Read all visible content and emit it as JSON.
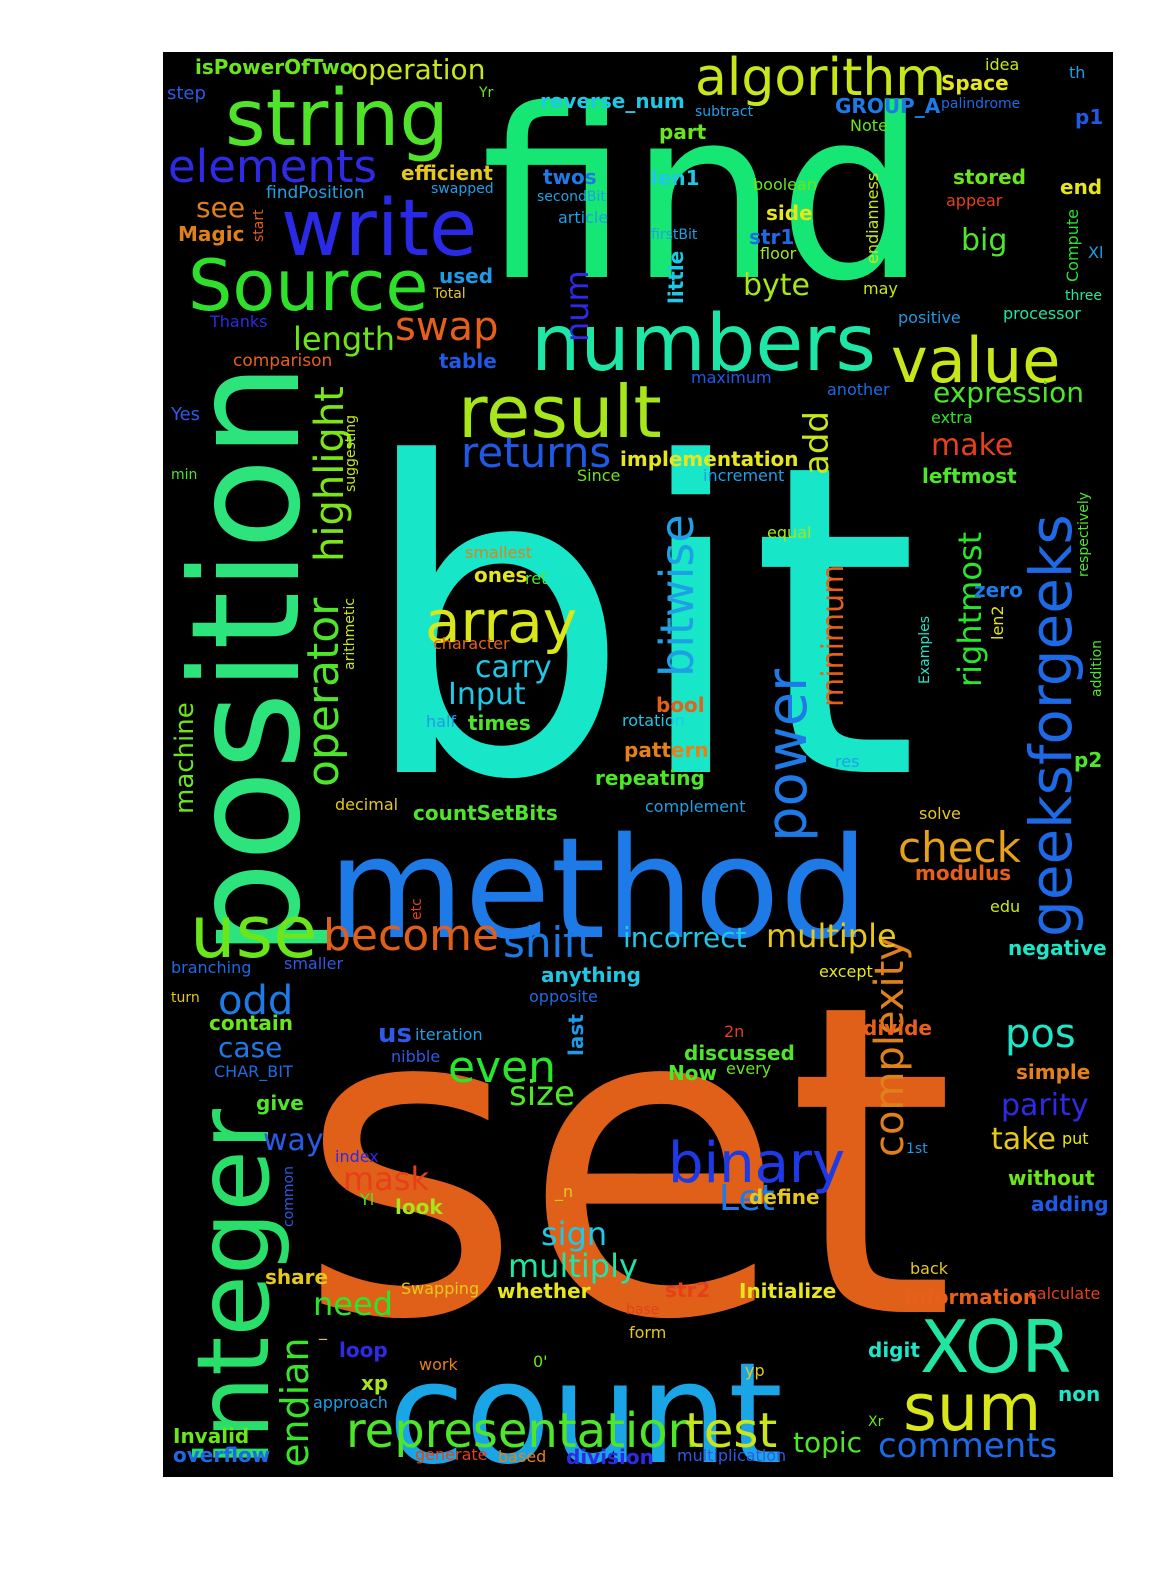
{
  "colors": {
    "background": "#000000",
    "page": "#ffffff"
  },
  "words": [
    {
      "text": "bit",
      "color": "#18e6c8"
    },
    {
      "text": "set",
      "color": "#e0601a"
    },
    {
      "text": "find",
      "color": "#16e673"
    },
    {
      "text": "position",
      "color": "#2de47c"
    },
    {
      "text": "method",
      "color": "#1e7ae6"
    },
    {
      "text": "count",
      "color": "#1aa6e6"
    },
    {
      "text": "integer",
      "color": "#2ade6a"
    },
    {
      "text": "string",
      "color": "#4fe42a"
    },
    {
      "text": "write",
      "color": "#2a2ae6"
    },
    {
      "text": "Source",
      "color": "#2ee02a"
    },
    {
      "text": "numbers",
      "color": "#1ee6a6"
    },
    {
      "text": "value",
      "color": "#c8e61a"
    },
    {
      "text": "result",
      "color": "#a6e61a"
    },
    {
      "text": "algorithm",
      "color": "#c8e61a"
    },
    {
      "text": "elements",
      "color": "#2e2ae6"
    },
    {
      "text": "geeksforgeeks",
      "color": "#1e6ae6"
    },
    {
      "text": "power",
      "color": "#1e7ae6"
    },
    {
      "text": "XOR",
      "color": "#22e6a0"
    },
    {
      "text": "sum",
      "color": "#d8e61a"
    },
    {
      "text": "representation",
      "color": "#4ee62a"
    },
    {
      "text": "test",
      "color": "#c8e61a"
    },
    {
      "text": "use",
      "color": "#6ae61a"
    },
    {
      "text": "become",
      "color": "#e0601a"
    },
    {
      "text": "shift",
      "color": "#1e7ae6"
    },
    {
      "text": "binary",
      "color": "#1e3ae6"
    },
    {
      "text": "array",
      "color": "#d8e61a"
    },
    {
      "text": "returns",
      "color": "#1e5ae6"
    },
    {
      "text": "bitwise",
      "color": "#1ea0e6"
    },
    {
      "text": "operator",
      "color": "#4ee62a"
    },
    {
      "text": "highlight",
      "color": "#7ae61a"
    },
    {
      "text": "check",
      "color": "#e6a01a"
    },
    {
      "text": "complexity",
      "color": "#e0801a"
    },
    {
      "text": "endian",
      "color": "#3ae62a"
    },
    {
      "text": "even",
      "color": "#2ae62a"
    },
    {
      "text": "odd",
      "color": "#1e7ae6"
    },
    {
      "text": "pos",
      "color": "#1ee6c8"
    },
    {
      "text": "swap",
      "color": "#e6601a"
    },
    {
      "text": "length",
      "color": "#6ae61a"
    },
    {
      "text": "rightmost",
      "color": "#2ae62a"
    },
    {
      "text": "minimum",
      "color": "#e6601a"
    },
    {
      "text": "incorrect",
      "color": "#1ec8e6"
    },
    {
      "text": "multiple",
      "color": "#e6c81a"
    },
    {
      "text": "comments",
      "color": "#1e6ae6"
    },
    {
      "text": "topic",
      "color": "#4ee62a"
    },
    {
      "text": "expression",
      "color": "#4ee62a"
    },
    {
      "text": "make",
      "color": "#e6401a"
    },
    {
      "text": "add",
      "color": "#c8e61a"
    },
    {
      "text": "num",
      "color": "#2e2ae6"
    },
    {
      "text": "size",
      "color": "#4ee62a"
    },
    {
      "text": "mask",
      "color": "#e6401a"
    },
    {
      "text": "sign",
      "color": "#1ec8e6"
    },
    {
      "text": "multiply",
      "color": "#1ee6a6"
    },
    {
      "text": "need",
      "color": "#2ae62a"
    },
    {
      "text": "machine",
      "color": "#6ae61a"
    },
    {
      "text": "parity",
      "color": "#2e2ae6"
    },
    {
      "text": "take",
      "color": "#e6c81a"
    },
    {
      "text": "way",
      "color": "#2a5ae6"
    },
    {
      "text": "case",
      "color": "#1e7ae6"
    },
    {
      "text": "Let",
      "color": "#1e7ae6"
    },
    {
      "text": "carry",
      "color": "#1ec8e6"
    },
    {
      "text": "Input",
      "color": "#1ec8e6"
    },
    {
      "text": "byte",
      "color": "#a6e61a"
    },
    {
      "text": "big",
      "color": "#4ee62a"
    },
    {
      "text": "see",
      "color": "#e0801a"
    },
    {
      "text": "operation",
      "color": "#c8e61a"
    },
    {
      "text": "isPowerOfTwo",
      "color": "#6ae61a"
    },
    {
      "text": "reverse_num",
      "color": "#1ec8e6"
    },
    {
      "text": "GROUP_A",
      "color": "#1e7ae6"
    },
    {
      "text": "Space",
      "color": "#e6e61a"
    },
    {
      "text": "efficient",
      "color": "#e6c81a"
    },
    {
      "text": "twos",
      "color": "#1e7ae6"
    },
    {
      "text": "len1",
      "color": "#1ec8e6"
    },
    {
      "text": "stored",
      "color": "#6ae61a"
    },
    {
      "text": "end",
      "color": "#e6e61a"
    },
    {
      "text": "side",
      "color": "#e6e61a"
    },
    {
      "text": "str1",
      "color": "#1e6ae6"
    },
    {
      "text": "part",
      "color": "#6ae61a"
    },
    {
      "text": "Magic",
      "color": "#e0801a"
    },
    {
      "text": "used",
      "color": "#1e9ae6"
    },
    {
      "text": "table",
      "color": "#1e5ae6"
    },
    {
      "text": "implementation",
      "color": "#e6e61a"
    },
    {
      "text": "leftmost",
      "color": "#4ee62a"
    },
    {
      "text": "zero",
      "color": "#1e7ae6"
    },
    {
      "text": "ones",
      "color": "#e6e61a"
    },
    {
      "text": "ret",
      "color": "#4ee62a"
    },
    {
      "text": "bool",
      "color": "#e6601a"
    },
    {
      "text": "times",
      "color": "#4ee62a"
    },
    {
      "text": "pattern",
      "color": "#e6801a"
    },
    {
      "text": "repeating",
      "color": "#4ee62a"
    },
    {
      "text": "countSetBits",
      "color": "#4ee62a"
    },
    {
      "text": "modulus",
      "color": "#e6601a"
    },
    {
      "text": "p1",
      "color": "#1e5ae6"
    },
    {
      "text": "p2",
      "color": "#4ee62a"
    },
    {
      "text": "negative",
      "color": "#1ee6c8"
    },
    {
      "text": "anything",
      "color": "#1ec8e6"
    },
    {
      "text": "contain",
      "color": "#6ae61a"
    },
    {
      "text": "us",
      "color": "#2e5ae6"
    },
    {
      "text": "last",
      "color": "#1e9ae6"
    },
    {
      "text": "discussed",
      "color": "#4ee62a"
    },
    {
      "text": "Now",
      "color": "#4ee62a"
    },
    {
      "text": "divide",
      "color": "#e6601a"
    },
    {
      "text": "simple",
      "color": "#e6801a"
    },
    {
      "text": "give",
      "color": "#4ee62a"
    },
    {
      "text": "look",
      "color": "#a6e61a"
    },
    {
      "text": "define",
      "color": "#e6c81a"
    },
    {
      "text": "without",
      "color": "#6ae61a"
    },
    {
      "text": "adding",
      "color": "#1e5ae6"
    },
    {
      "text": "share",
      "color": "#e6c81a"
    },
    {
      "text": "whether",
      "color": "#e6e61a"
    },
    {
      "text": "str2",
      "color": "#e6401a"
    },
    {
      "text": "Initialize",
      "color": "#e6e61a"
    },
    {
      "text": "information",
      "color": "#e6601a"
    },
    {
      "text": "loop",
      "color": "#2e2ae6"
    },
    {
      "text": "xp",
      "color": "#a6e61a"
    },
    {
      "text": "digit",
      "color": "#1ee6c8"
    },
    {
      "text": "non",
      "color": "#1ee6c8"
    },
    {
      "text": "Invalid",
      "color": "#6ae61a"
    },
    {
      "text": "overflow",
      "color": "#1e6ae6"
    },
    {
      "text": "division",
      "color": "#2e2ae6"
    },
    {
      "text": "findPosition",
      "color": "#1ea0e6"
    },
    {
      "text": "swapped",
      "color": "#1ea0e6"
    },
    {
      "text": "secondBit",
      "color": "#1ea0e6"
    },
    {
      "text": "article",
      "color": "#1ea0e6"
    },
    {
      "text": "firstBit",
      "color": "#1ea0e6"
    },
    {
      "text": "little",
      "color": "#1ec8e6"
    },
    {
      "text": "boolean",
      "color": "#6ae61a"
    },
    {
      "text": "floor",
      "color": "#a6e61a"
    },
    {
      "text": "endianness",
      "color": "#c8e61a"
    },
    {
      "text": "appear",
      "color": "#e6401a"
    },
    {
      "text": "Compute",
      "color": "#2ae62a"
    },
    {
      "text": "Xl",
      "color": "#1ea0e6"
    },
    {
      "text": "three",
      "color": "#1ee6a6"
    },
    {
      "text": "may",
      "color": "#c8e61a"
    },
    {
      "text": "processor",
      "color": "#1ee6a6"
    },
    {
      "text": "positive",
      "color": "#1e9ae6"
    },
    {
      "text": "Total",
      "color": "#e6c81a"
    },
    {
      "text": "Thanks",
      "color": "#2e2ae6"
    },
    {
      "text": "comparison",
      "color": "#e6601a"
    },
    {
      "text": "maximum",
      "color": "#1e5ae6"
    },
    {
      "text": "another",
      "color": "#1e6ae6"
    },
    {
      "text": "extra",
      "color": "#2ae62a"
    },
    {
      "text": "Yes",
      "color": "#2e5ae6"
    },
    {
      "text": "min",
      "color": "#4ee62a"
    },
    {
      "text": "suggesting",
      "color": "#c8e61a"
    },
    {
      "text": "Since",
      "color": "#6ae61a"
    },
    {
      "text": "increment",
      "color": "#1ea0e6"
    },
    {
      "text": "equal",
      "color": "#a6e61a"
    },
    {
      "text": "respectively",
      "color": "#4ee62a"
    },
    {
      "text": "smallest",
      "color": "#e0801a"
    },
    {
      "text": "character",
      "color": "#e6601a"
    },
    {
      "text": "arithmetic",
      "color": "#c8e61a"
    },
    {
      "text": "Examples",
      "color": "#1ee6c8"
    },
    {
      "text": "len2",
      "color": "#e6e61a"
    },
    {
      "text": "addition",
      "color": "#4ee62a"
    },
    {
      "text": "half",
      "color": "#1e9ae6"
    },
    {
      "text": "rotation",
      "color": "#1ec8e6"
    },
    {
      "text": "res",
      "color": "#1ea0e6"
    },
    {
      "text": "decimal",
      "color": "#e6c81a"
    },
    {
      "text": "complement",
      "color": "#1ea0e6"
    },
    {
      "text": "solve",
      "color": "#e6c81a"
    },
    {
      "text": "etc",
      "color": "#e6401a"
    },
    {
      "text": "edu",
      "color": "#c8e61a"
    },
    {
      "text": "branching",
      "color": "#1e6ae6"
    },
    {
      "text": "smaller",
      "color": "#2e5ae6"
    },
    {
      "text": "except",
      "color": "#e6e61a"
    },
    {
      "text": "turn",
      "color": "#e6c81a"
    },
    {
      "text": "opposite",
      "color": "#1e6ae6"
    },
    {
      "text": "iteration",
      "color": "#1ea0e6"
    },
    {
      "text": "2n",
      "color": "#e6401a"
    },
    {
      "text": "nibble",
      "color": "#2e5ae6"
    },
    {
      "text": "every",
      "color": "#6ae61a"
    },
    {
      "text": "CHAR_BIT",
      "color": "#1e6ae6"
    },
    {
      "text": "index",
      "color": "#2e2ae6"
    },
    {
      "text": "1st",
      "color": "#1e9ae6"
    },
    {
      "text": "put",
      "color": "#e6e61a"
    },
    {
      "text": "common",
      "color": "#2e5ae6"
    },
    {
      "text": "Yl",
      "color": "#4ee62a"
    },
    {
      "text": "_n",
      "color": "#e6c81a"
    },
    {
      "text": "back",
      "color": "#e6c81a"
    },
    {
      "text": "calculate",
      "color": "#e6401a"
    },
    {
      "text": "Swapping",
      "color": "#e6c81a"
    },
    {
      "text": "base",
      "color": "#e6401a"
    },
    {
      "text": "form",
      "color": "#e6c81a"
    },
    {
      "text": "work",
      "color": "#e6801a"
    },
    {
      "text": "0'",
      "color": "#6ae61a"
    },
    {
      "text": "yp",
      "color": "#e6c81a"
    },
    {
      "text": "approach",
      "color": "#1ea0e6"
    },
    {
      "text": "Xr",
      "color": "#6ae61a"
    },
    {
      "text": "generate",
      "color": "#e6401a"
    },
    {
      "text": "based",
      "color": "#e6801a"
    },
    {
      "text": "multiplication",
      "color": "#2e5ae6"
    },
    {
      "text": "step",
      "color": "#2e5ae6"
    },
    {
      "text": "Yr",
      "color": "#6ae61a"
    },
    {
      "text": "subtract",
      "color": "#1ea0e6"
    },
    {
      "text": "palindrome",
      "color": "#1e6ae6"
    },
    {
      "text": "Note",
      "color": "#6ae61a"
    },
    {
      "text": "idea",
      "color": "#c8e61a"
    },
    {
      "text": "th",
      "color": "#1ea0e6"
    },
    {
      "text": "start",
      "color": "#e6601a"
    },
    {
      "text": "_",
      "color": "#e6c81a"
    }
  ]
}
